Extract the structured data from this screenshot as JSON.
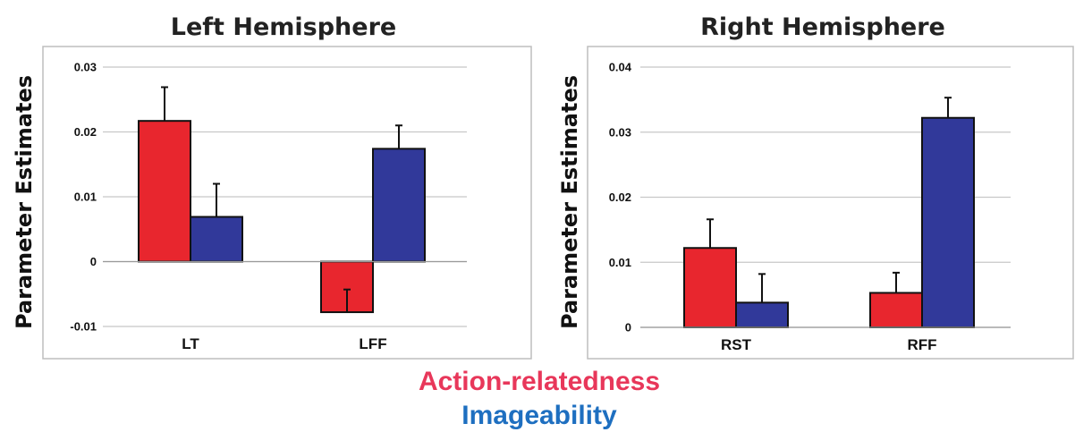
{
  "chart_data": [
    {
      "type": "bar",
      "title": "Left Hemisphere",
      "ylabel": "Parameter Estimates",
      "xlabel": "",
      "categories": [
        "LT",
        "LFF"
      ],
      "ylim": [
        -0.01,
        0.03
      ],
      "yticks": [
        "-0.01",
        "0",
        "0.01",
        "0.02",
        "0.03"
      ],
      "grid": true,
      "series": [
        {
          "name": "Action-relatedness",
          "color": "#e8262e",
          "values": [
            0.0217,
            -0.0078
          ],
          "errors": [
            0.0052,
            0.0035
          ]
        },
        {
          "name": "Imageability",
          "color": "#31399a",
          "values": [
            0.0069,
            0.0174
          ],
          "errors": [
            0.0051,
            0.0036
          ]
        }
      ]
    },
    {
      "type": "bar",
      "title": "Right Hemisphere",
      "ylabel": "Parameter Estimates",
      "xlabel": "",
      "categories": [
        "RST",
        "RFF"
      ],
      "ylim": [
        0,
        0.04
      ],
      "yticks": [
        "0",
        "0.01",
        "0.02",
        "0.03",
        "0.04"
      ],
      "grid": true,
      "series": [
        {
          "name": "Action-relatedness",
          "color": "#e8262e",
          "values": [
            0.0122,
            0.0053
          ],
          "errors": [
            0.0044,
            0.0031
          ]
        },
        {
          "name": "Imageability",
          "color": "#31399a",
          "values": [
            0.0038,
            0.0322
          ],
          "errors": [
            0.0044,
            0.0031
          ]
        }
      ]
    }
  ],
  "legend": {
    "action_label": "Action-relatedness",
    "imageability_label": "Imageability",
    "action_color": "#e8375a",
    "imageability_color": "#1e6fc0"
  }
}
